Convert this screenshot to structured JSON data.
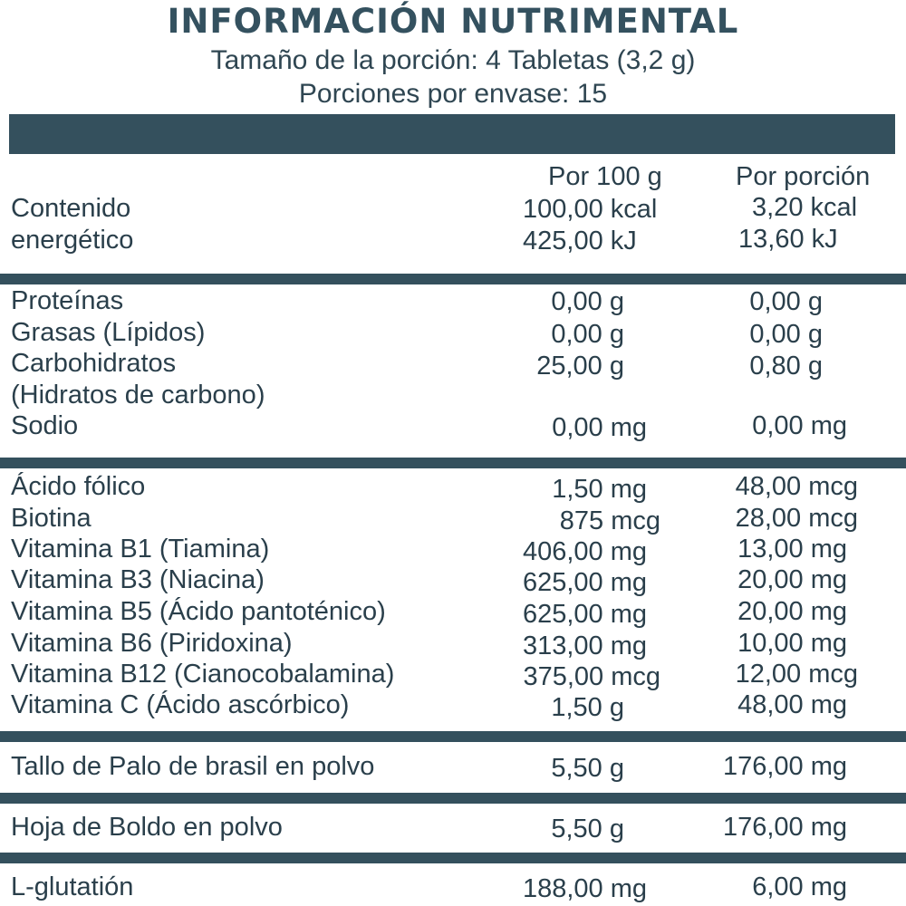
{
  "title": "INFORMACIÓN NUTRIMENTAL",
  "serving_size": "Tamaño de la porción: 4 Tabletas (3,2 g)",
  "servings_per_container": "Porciones por envase: 15",
  "columns": {
    "per100": "Por 100 g",
    "perServing": "Por porción"
  },
  "energy": {
    "label_line1": "Contenido",
    "label_line2": "energético",
    "kcal_100": "100,00 kcal",
    "kj_100": "425,00 kJ",
    "kcal_serving": "3,20 kcal",
    "kj_serving": "13,60 kJ"
  },
  "macros": [
    {
      "label": "Proteínas",
      "per100": "0,00 g",
      "perServing": "0,00 g"
    },
    {
      "label": "Grasas (Lípidos)",
      "per100": "0,00 g",
      "perServing": "0,00 g"
    },
    {
      "label": "Carbohidratos",
      "per100": "25,00 g",
      "perServing": "0,80 g"
    },
    {
      "label": "(Hidratos de carbono)",
      "per100": "",
      "perServing": ""
    },
    {
      "label": "Sodio",
      "per100": "0,00 mg",
      "perServing": "0,00 mg"
    }
  ],
  "vitamins": [
    {
      "label": "Ácido fólico",
      "per100": "1,50 mg",
      "perServing": "48,00 mcg"
    },
    {
      "label": "Biotina",
      "per100": "875 mcg",
      "perServing": "28,00 mcg"
    },
    {
      "label": "Vitamina B1 (Tiamina)",
      "per100": "406,00 mg",
      "perServing": "13,00 mg"
    },
    {
      "label": "Vitamina B3 (Niacina)",
      "per100": "625,00 mg",
      "perServing": "20,00 mg"
    },
    {
      "label": "Vitamina B5 (Ácido pantoténico)",
      "per100": "625,00 mg",
      "perServing": "20,00 mg"
    },
    {
      "label": "Vitamina B6 (Piridoxina)",
      "per100": "313,00 mg",
      "perServing": "10,00 mg"
    },
    {
      "label": "Vitamina B12 (Cianocobalamina)",
      "per100": "375,00 mcg",
      "perServing": "12,00 mcg"
    },
    {
      "label": "Vitamina C (Ácido ascórbico)",
      "per100": "1,50 g",
      "perServing": "48,00 mg"
    }
  ],
  "extras": [
    {
      "label": "Tallo de Palo de brasil en polvo",
      "per100": "5,50 g",
      "perServing": "176,00 mg"
    },
    {
      "label": "Hoja de Boldo en polvo",
      "per100": "5,50 g",
      "perServing": "176,00 mg"
    },
    {
      "label": "L-glutatión",
      "per100": "188,00 mg",
      "perServing": "6,00 mg"
    }
  ],
  "colors": {
    "bar": "#34505d",
    "text": "#2a3f4b"
  }
}
